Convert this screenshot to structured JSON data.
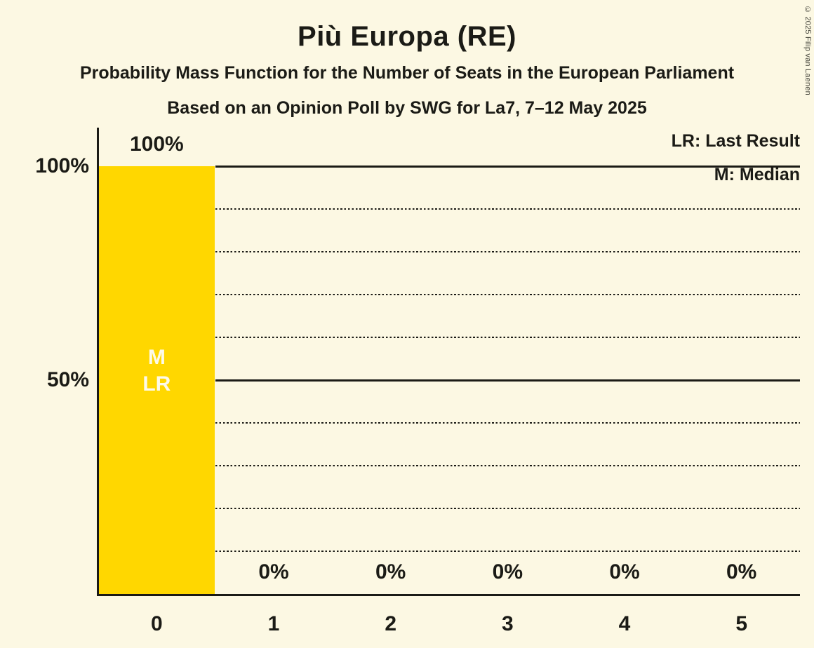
{
  "header": {
    "title": "Più Europa (RE)",
    "subtitle1": "Probability Mass Function for the Number of Seats in the European Parliament",
    "subtitle2": "Based on an Opinion Poll by SWG for La7, 7–12 May 2025"
  },
  "legend": {
    "last_result": "LR: Last Result",
    "median": "M: Median"
  },
  "copyright": "© 2025 Filip van Laenen",
  "colors": {
    "background": "#FCF8E3",
    "ink": "#1B1B16",
    "bar": "#FFD700",
    "bar_label": "#FDFAEA"
  },
  "chart_data": {
    "type": "bar",
    "title": "Più Europa (RE)",
    "categories": [
      "0",
      "1",
      "2",
      "3",
      "4",
      "5"
    ],
    "values": [
      100,
      0,
      0,
      0,
      0,
      0
    ],
    "value_labels": [
      "100%",
      "0%",
      "0%",
      "0%",
      "0%",
      "0%"
    ],
    "ylim": [
      0,
      100
    ],
    "yticks": [
      {
        "value": 100,
        "label": "100%"
      },
      {
        "value": 50,
        "label": "50%"
      }
    ],
    "solid_gridlines": [
      50,
      100
    ],
    "dotted_gridlines": [
      10,
      20,
      30,
      40,
      60,
      70,
      80,
      90
    ],
    "grid": true,
    "legend_position": "top-right",
    "bar_color": "#FFD700",
    "annotations": [
      {
        "category": "0",
        "labels": [
          "M",
          "LR"
        ]
      }
    ]
  }
}
